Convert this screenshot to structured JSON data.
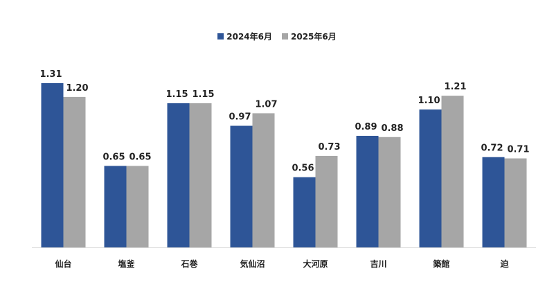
{
  "chart_data": {
    "type": "bar",
    "categories": [
      "仙台",
      "塩釜",
      "石巻",
      "気仙沼",
      "大河原",
      "吉川",
      "築館",
      "迫"
    ],
    "series": [
      {
        "name": "2024年6月",
        "values": [
          1.31,
          0.65,
          1.15,
          0.97,
          0.56,
          0.89,
          1.1,
          0.72
        ],
        "labels": [
          "1.31",
          "0.65",
          "1.15",
          "0.97",
          "0.56",
          "0.89",
          "1.10",
          "0.72"
        ]
      },
      {
        "name": "2025年6月",
        "values": [
          1.2,
          0.65,
          1.15,
          1.07,
          0.73,
          0.88,
          1.21,
          0.71
        ],
        "labels": [
          "1.20",
          "0.65",
          "1.15",
          "1.07",
          "0.73",
          "0.88",
          "1.21",
          "0.71"
        ]
      }
    ],
    "colors": [
      "#2E5597",
      "#A6A6A6"
    ],
    "ylim": [
      0,
      1.35
    ],
    "grid": false,
    "legend_position": "top-center",
    "title": "",
    "xlabel": "",
    "ylabel": ""
  }
}
